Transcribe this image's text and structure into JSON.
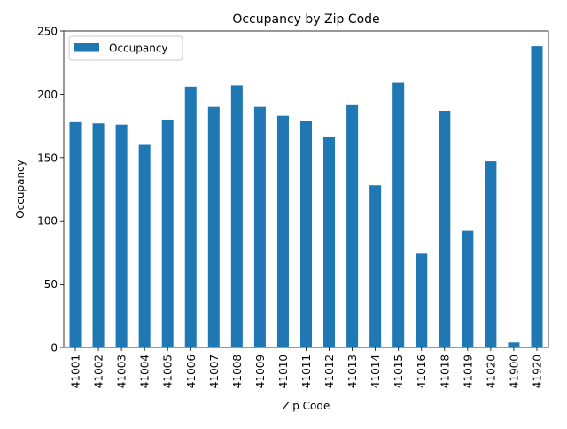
{
  "chart_data": {
    "type": "bar",
    "title": "Occupancy by Zip Code",
    "xlabel": "Zip Code",
    "ylabel": "Occupancy",
    "ylim": [
      0,
      250
    ],
    "yticks": [
      0,
      50,
      100,
      150,
      200,
      250
    ],
    "grid": false,
    "legend_position": "top-left",
    "categories": [
      "41001",
      "41002",
      "41003",
      "41004",
      "41005",
      "41006",
      "41007",
      "41008",
      "41009",
      "41010",
      "41011",
      "41012",
      "41013",
      "41014",
      "41015",
      "41016",
      "41018",
      "41019",
      "41020",
      "41900",
      "41920"
    ],
    "series": [
      {
        "name": "Occupancy",
        "color": "#1f77b4",
        "values": [
          178,
          177,
          176,
          160,
          180,
          206,
          190,
          207,
          190,
          183,
          179,
          166,
          192,
          128,
          209,
          74,
          187,
          92,
          147,
          4,
          238
        ]
      }
    ]
  }
}
